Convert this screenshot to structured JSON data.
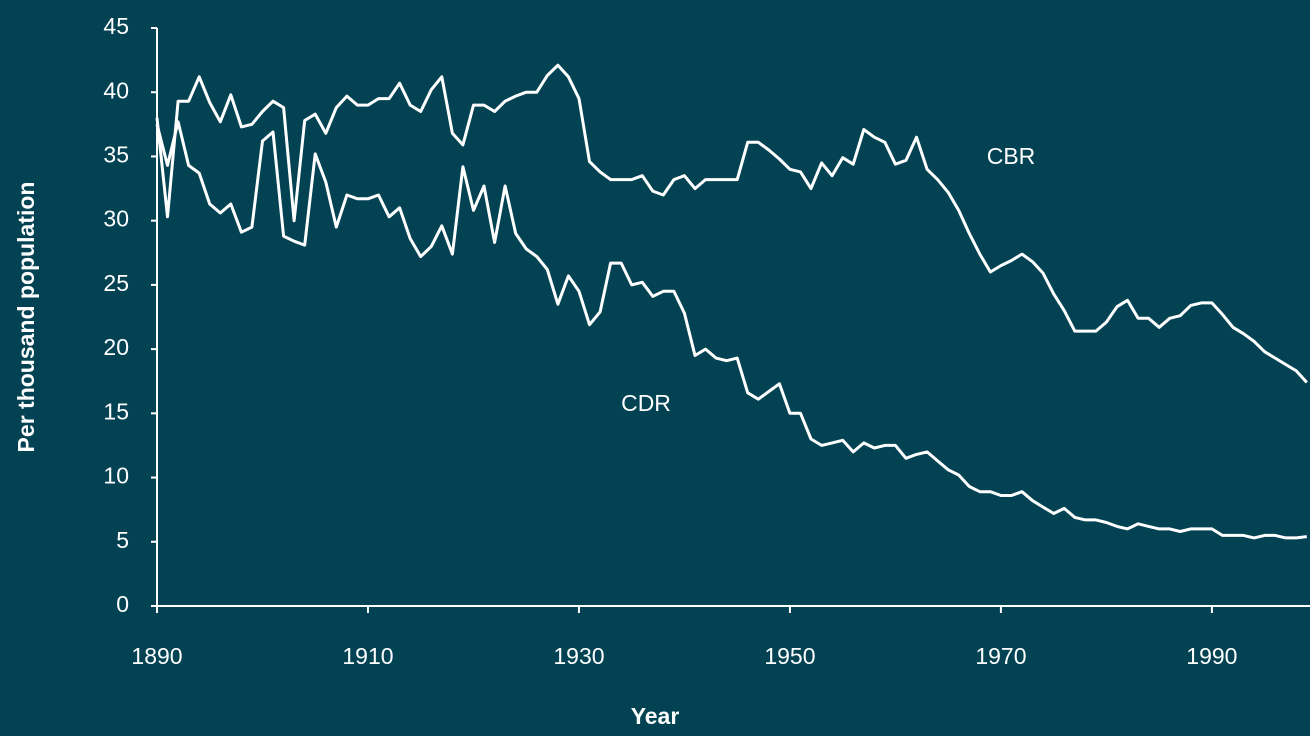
{
  "chart_data": {
    "type": "line",
    "xlabel": "Year",
    "ylabel": "Per thousand population",
    "x": [
      1890,
      1891,
      1892,
      1893,
      1894,
      1895,
      1896,
      1897,
      1898,
      1899,
      1900,
      1901,
      1902,
      1903,
      1904,
      1905,
      1906,
      1907,
      1908,
      1909,
      1910,
      1911,
      1912,
      1913,
      1914,
      1915,
      1916,
      1917,
      1918,
      1919,
      1920,
      1921,
      1922,
      1923,
      1924,
      1925,
      1926,
      1927,
      1928,
      1929,
      1930,
      1931,
      1932,
      1933,
      1934,
      1935,
      1936,
      1937,
      1938,
      1939,
      1940,
      1941,
      1942,
      1943,
      1944,
      1945,
      1946,
      1947,
      1948,
      1949,
      1950,
      1951,
      1952,
      1953,
      1954,
      1955,
      1956,
      1957,
      1958,
      1959,
      1960,
      1961,
      1962,
      1963,
      1964,
      1965,
      1966,
      1967,
      1968,
      1969,
      1970,
      1971,
      1972,
      1973,
      1974,
      1975,
      1976,
      1977,
      1978,
      1979,
      1980,
      1981,
      1982,
      1983,
      1984,
      1985,
      1986,
      1987,
      1988,
      1989,
      1990,
      1991,
      1992,
      1993,
      1994,
      1995,
      1996,
      1997,
      1998,
      1999
    ],
    "series": [
      {
        "name": "CBR",
        "color": "#ffffff",
        "values": [
          38,
          30.3,
          39.3,
          39.3,
          41.2,
          39.2,
          37.7,
          39.8,
          37.3,
          37.5,
          38.5,
          39.3,
          38.8,
          30,
          37.8,
          38.3,
          36.8,
          38.8,
          39.7,
          39,
          39,
          39.5,
          39.5,
          40.7,
          39,
          38.5,
          40.2,
          41.2,
          36.8,
          35.9,
          39,
          39,
          38.5,
          39.3,
          39.7,
          40,
          40,
          41.3,
          42.1,
          41.2,
          39.5,
          34.6,
          33.8,
          33.2,
          33.2,
          33.2,
          33.5,
          32.3,
          32,
          33.2,
          33.5,
          32.5,
          33.2,
          33.2,
          33.2,
          33.2,
          36.1,
          36.1,
          35.5,
          34.8,
          34,
          33.8,
          32.5,
          34.5,
          33.5,
          34.9,
          34.4,
          37.1,
          36.5,
          36.1,
          34.4,
          34.7,
          36.5,
          34,
          33.2,
          32.2,
          30.8,
          29,
          27.4,
          26,
          26.5,
          26.9,
          27.4,
          26.8,
          25.9,
          24.3,
          23,
          21.4,
          21.4,
          21.4,
          22.1,
          23.3,
          23.8,
          22.4,
          22.4,
          21.7,
          22.4,
          22.6,
          23.4,
          23.6,
          23.6,
          22.7,
          21.7,
          21.2,
          20.6,
          19.8,
          19.3,
          18.8,
          18.3,
          17.4
        ]
      },
      {
        "name": "CDR",
        "color": "#ffffff",
        "values": [
          37.5,
          34.3,
          37.7,
          34.3,
          33.7,
          31.3,
          30.6,
          31.3,
          29.1,
          29.5,
          36.2,
          36.9,
          28.8,
          28.4,
          28.1,
          35.2,
          33,
          29.5,
          32,
          31.7,
          31.7,
          32,
          30.3,
          31,
          28.6,
          27.2,
          28,
          29.6,
          27.4,
          34.2,
          30.8,
          32.7,
          28.3,
          32.7,
          29,
          27.8,
          27.2,
          26.2,
          23.5,
          25.7,
          24.5,
          21.9,
          22.9,
          26.7,
          26.7,
          25,
          25.2,
          24.1,
          24.5,
          24.5,
          22.8,
          19.5,
          20,
          19.3,
          19.1,
          19.3,
          16.6,
          16.1,
          16.7,
          17.3,
          15,
          15,
          13,
          12.5,
          12.7,
          12.9,
          12,
          12.7,
          12.3,
          12.5,
          12.5,
          11.5,
          11.8,
          12,
          11.3,
          10.6,
          10.2,
          9.3,
          8.9,
          8.9,
          8.6,
          8.6,
          8.9,
          8.2,
          7.7,
          7.2,
          7.6,
          6.9,
          6.7,
          6.7,
          6.5,
          6.2,
          6,
          6.4,
          6.2,
          6,
          6,
          5.8,
          6,
          6,
          6,
          5.5,
          5.5,
          5.5,
          5.3,
          5.5,
          5.5,
          5.3,
          5.3,
          5.4
        ]
      }
    ],
    "xlim": [
      1890,
      1999.3
    ],
    "xticks": [
      1890,
      1910,
      1930,
      1950,
      1970,
      1990
    ],
    "ylim": [
      0,
      45
    ],
    "yticks": [
      0,
      5,
      10,
      15,
      20,
      25,
      30,
      35,
      40,
      45
    ],
    "background": "#024253",
    "axis_color": "#ffffff"
  }
}
